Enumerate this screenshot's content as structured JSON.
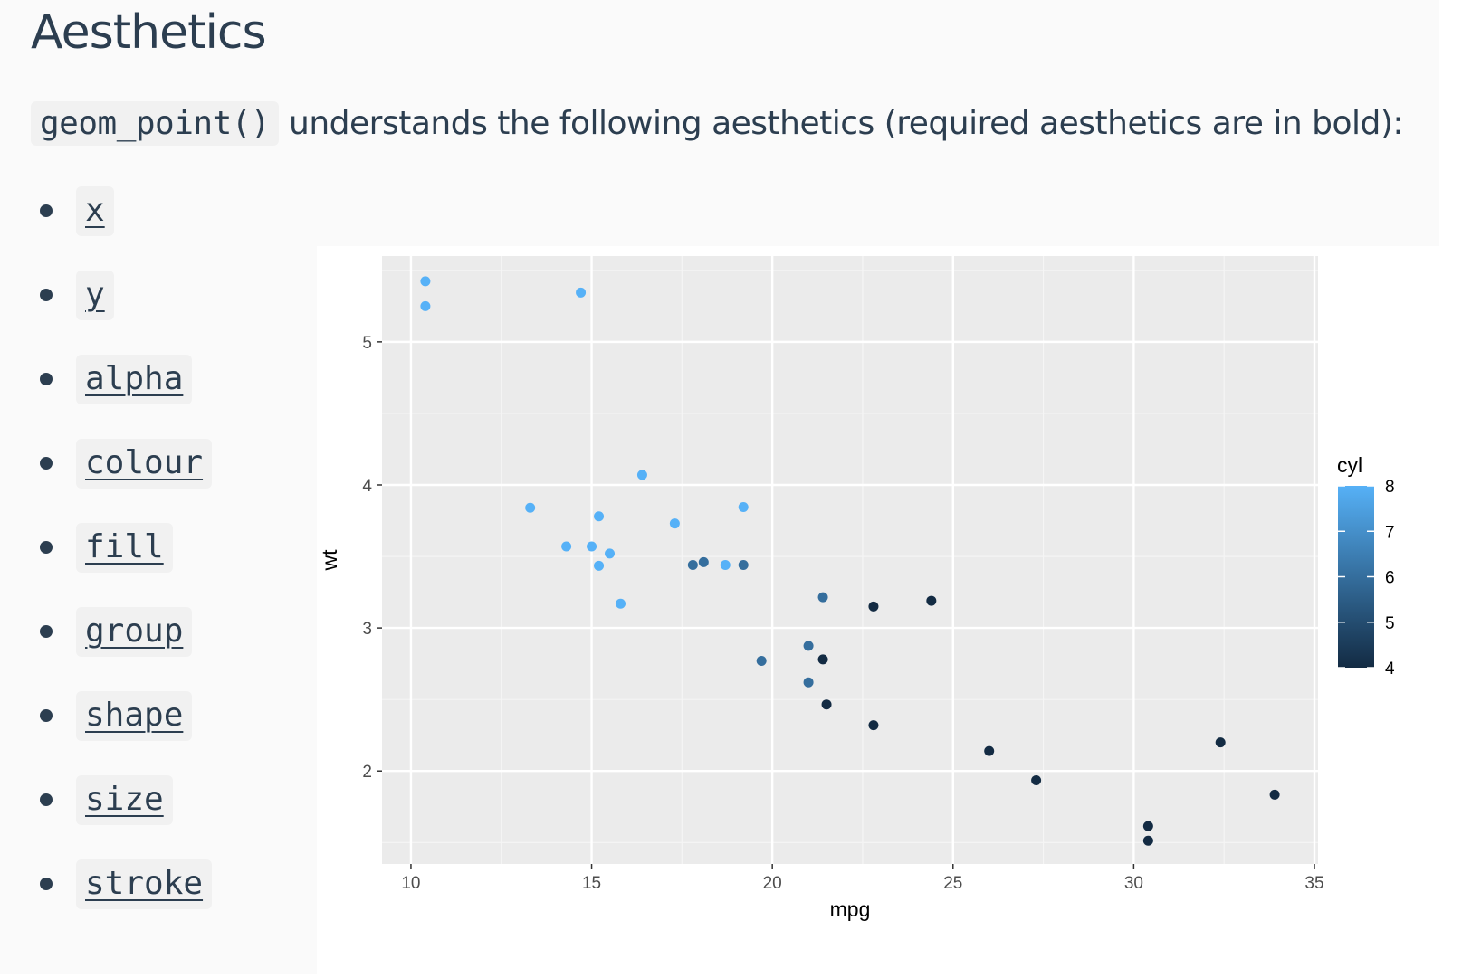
{
  "title": "Aesthetics",
  "intro": {
    "code": "geom_point()",
    "text": " understands the following aesthetics (required aesthetics are in bold):"
  },
  "aesthetics": [
    "x",
    "y",
    "alpha",
    "colour",
    "fill",
    "group",
    "shape",
    "size",
    "stroke"
  ],
  "chart_data": {
    "type": "scatter",
    "xlabel": "mpg",
    "ylabel": "wt",
    "xlim": [
      9.2,
      35.1
    ],
    "ylim": [
      1.35,
      5.6
    ],
    "xticks": [
      10,
      15,
      20,
      25,
      30,
      35
    ],
    "yticks": [
      2,
      3,
      4,
      5
    ],
    "grid": true,
    "legend": {
      "title": "cyl",
      "placement": "right",
      "type": "colorbar",
      "ticks": [
        4,
        5,
        6,
        7,
        8
      ],
      "low_color": "#132B43",
      "high_color": "#56B1F7"
    },
    "points": [
      {
        "x": 21.0,
        "y": 2.62,
        "cyl": 6
      },
      {
        "x": 21.0,
        "y": 2.875,
        "cyl": 6
      },
      {
        "x": 22.8,
        "y": 2.32,
        "cyl": 4
      },
      {
        "x": 21.4,
        "y": 3.215,
        "cyl": 6
      },
      {
        "x": 18.7,
        "y": 3.44,
        "cyl": 8
      },
      {
        "x": 18.1,
        "y": 3.46,
        "cyl": 6
      },
      {
        "x": 14.3,
        "y": 3.57,
        "cyl": 8
      },
      {
        "x": 24.4,
        "y": 3.19,
        "cyl": 4
      },
      {
        "x": 22.8,
        "y": 3.15,
        "cyl": 4
      },
      {
        "x": 19.2,
        "y": 3.44,
        "cyl": 6
      },
      {
        "x": 17.8,
        "y": 3.44,
        "cyl": 6
      },
      {
        "x": 16.4,
        "y": 4.07,
        "cyl": 8
      },
      {
        "x": 17.3,
        "y": 3.73,
        "cyl": 8
      },
      {
        "x": 15.2,
        "y": 3.78,
        "cyl": 8
      },
      {
        "x": 10.4,
        "y": 5.25,
        "cyl": 8
      },
      {
        "x": 10.4,
        "y": 5.424,
        "cyl": 8
      },
      {
        "x": 14.7,
        "y": 5.345,
        "cyl": 8
      },
      {
        "x": 32.4,
        "y": 2.2,
        "cyl": 4
      },
      {
        "x": 30.4,
        "y": 1.615,
        "cyl": 4
      },
      {
        "x": 33.9,
        "y": 1.835,
        "cyl": 4
      },
      {
        "x": 21.5,
        "y": 2.465,
        "cyl": 4
      },
      {
        "x": 15.5,
        "y": 3.52,
        "cyl": 8
      },
      {
        "x": 15.2,
        "y": 3.435,
        "cyl": 8
      },
      {
        "x": 13.3,
        "y": 3.84,
        "cyl": 8
      },
      {
        "x": 19.2,
        "y": 3.845,
        "cyl": 8
      },
      {
        "x": 27.3,
        "y": 1.935,
        "cyl": 4
      },
      {
        "x": 26.0,
        "y": 2.14,
        "cyl": 4
      },
      {
        "x": 30.4,
        "y": 1.513,
        "cyl": 4
      },
      {
        "x": 15.8,
        "y": 3.17,
        "cyl": 8
      },
      {
        "x": 19.7,
        "y": 2.77,
        "cyl": 6
      },
      {
        "x": 15.0,
        "y": 3.57,
        "cyl": 8
      },
      {
        "x": 21.4,
        "y": 2.78,
        "cyl": 4
      }
    ]
  }
}
